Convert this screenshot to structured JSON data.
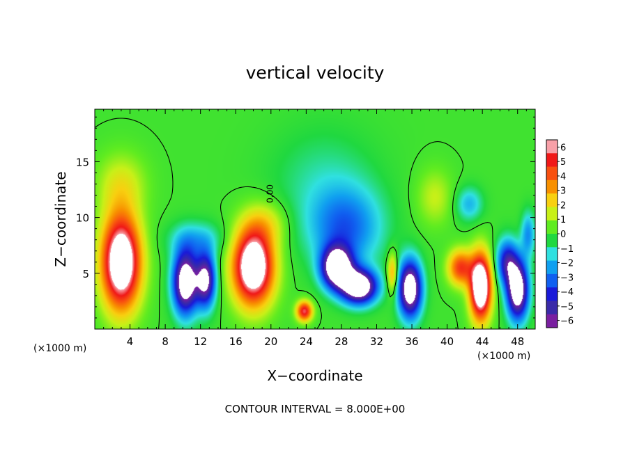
{
  "chart_data": {
    "type": "heatmap",
    "title": "vertical velocity",
    "xlabel": "X−coordinate",
    "ylabel": "Z−coordinate",
    "x_unit_left": "(×1000 m)",
    "x_unit_right": "(×1000 m)",
    "xlim": [
      0,
      50
    ],
    "ylim": [
      0,
      19.7
    ],
    "x_ticks": [
      4,
      8,
      12,
      16,
      20,
      24,
      28,
      32,
      36,
      40,
      44,
      48
    ],
    "x_tick_labels": [
      "4",
      "8",
      "12",
      "16",
      "20",
      "24",
      "28",
      "32",
      "36",
      "40",
      "44",
      "48"
    ],
    "y_ticks": [
      5,
      10,
      15
    ],
    "y_tick_labels": [
      "5",
      "10",
      "15"
    ],
    "colorbar": {
      "min": -6,
      "max": 6,
      "ticks": [
        6,
        5,
        4,
        3,
        2,
        1,
        0,
        -1,
        -2,
        -3,
        -4,
        -5,
        -6
      ],
      "tick_labels": [
        "6",
        "5",
        "4",
        "3",
        "2",
        "1",
        "0",
        "−1",
        "−2",
        "−3",
        "−4",
        "−5",
        "−6"
      ],
      "colors": [
        "#7a1fa0",
        "#3a2aa8",
        "#1a1ad8",
        "#1060f0",
        "#10a0f0",
        "#30e0e0",
        "#20d840",
        "#60ec20",
        "#c8f018",
        "#f8d010",
        "#f89000",
        "#f85010",
        "#f01818",
        "#f8a0a8"
      ]
    },
    "contour_label": "0.00",
    "footer": "CONTOUR INTERVAL = 8.000E+00",
    "background_value": 0,
    "features": [
      {
        "x": 3.0,
        "z": 6.0,
        "sx": 2.2,
        "sz": 4.2,
        "w": 8.5
      },
      {
        "x": 3.0,
        "z": 13.0,
        "sx": 2.8,
        "sz": 2.8,
        "w": 1.6
      },
      {
        "x": 10.3,
        "z": 4.2,
        "sx": 1.4,
        "sz": 2.8,
        "w": -8.0
      },
      {
        "x": 12.6,
        "z": 4.4,
        "sx": 1.1,
        "sz": 2.4,
        "w": -6.5
      },
      {
        "x": 11.5,
        "z": 8.0,
        "sx": 3.0,
        "sz": 1.6,
        "w": -1.8
      },
      {
        "x": 18.0,
        "z": 5.6,
        "sx": 2.3,
        "sz": 3.4,
        "w": 8.5
      },
      {
        "x": 19.5,
        "z": 9.5,
        "sx": 2.5,
        "sz": 2.0,
        "w": 1.5
      },
      {
        "x": 23.8,
        "z": 1.6,
        "sx": 0.9,
        "sz": 0.9,
        "w": 5.5
      },
      {
        "x": 27.5,
        "z": 5.5,
        "sx": 1.7,
        "sz": 1.8,
        "w": -8.5
      },
      {
        "x": 30.0,
        "z": 3.8,
        "sx": 2.0,
        "sz": 1.5,
        "w": -8.5
      },
      {
        "x": 28.5,
        "z": 9.0,
        "sx": 4.0,
        "sz": 3.5,
        "w": -3.0
      },
      {
        "x": 26.0,
        "z": 13.0,
        "sx": 6.0,
        "sz": 5.0,
        "w": -1.0
      },
      {
        "x": 33.8,
        "z": 5.0,
        "sx": 0.6,
        "sz": 1.8,
        "w": 3.2
      },
      {
        "x": 35.8,
        "z": 3.6,
        "sx": 1.3,
        "sz": 2.5,
        "w": -8.0
      },
      {
        "x": 38.6,
        "z": 11.8,
        "sx": 2.0,
        "sz": 2.5,
        "w": 1.4
      },
      {
        "x": 41.5,
        "z": 5.5,
        "sx": 1.4,
        "sz": 1.6,
        "w": 4.5
      },
      {
        "x": 43.8,
        "z": 3.8,
        "sx": 1.2,
        "sz": 2.9,
        "w": 9.0
      },
      {
        "x": 42.5,
        "z": 11.2,
        "sx": 1.5,
        "sz": 1.5,
        "w": -2.0
      },
      {
        "x": 46.8,
        "z": 6.0,
        "sx": 1.2,
        "sz": 2.0,
        "w": -4.5
      },
      {
        "x": 48.0,
        "z": 3.5,
        "sx": 1.2,
        "sz": 2.6,
        "w": -8.0
      },
      {
        "x": 49.2,
        "z": 8.5,
        "sx": 0.8,
        "sz": 2.0,
        "w": -2.5
      }
    ]
  }
}
